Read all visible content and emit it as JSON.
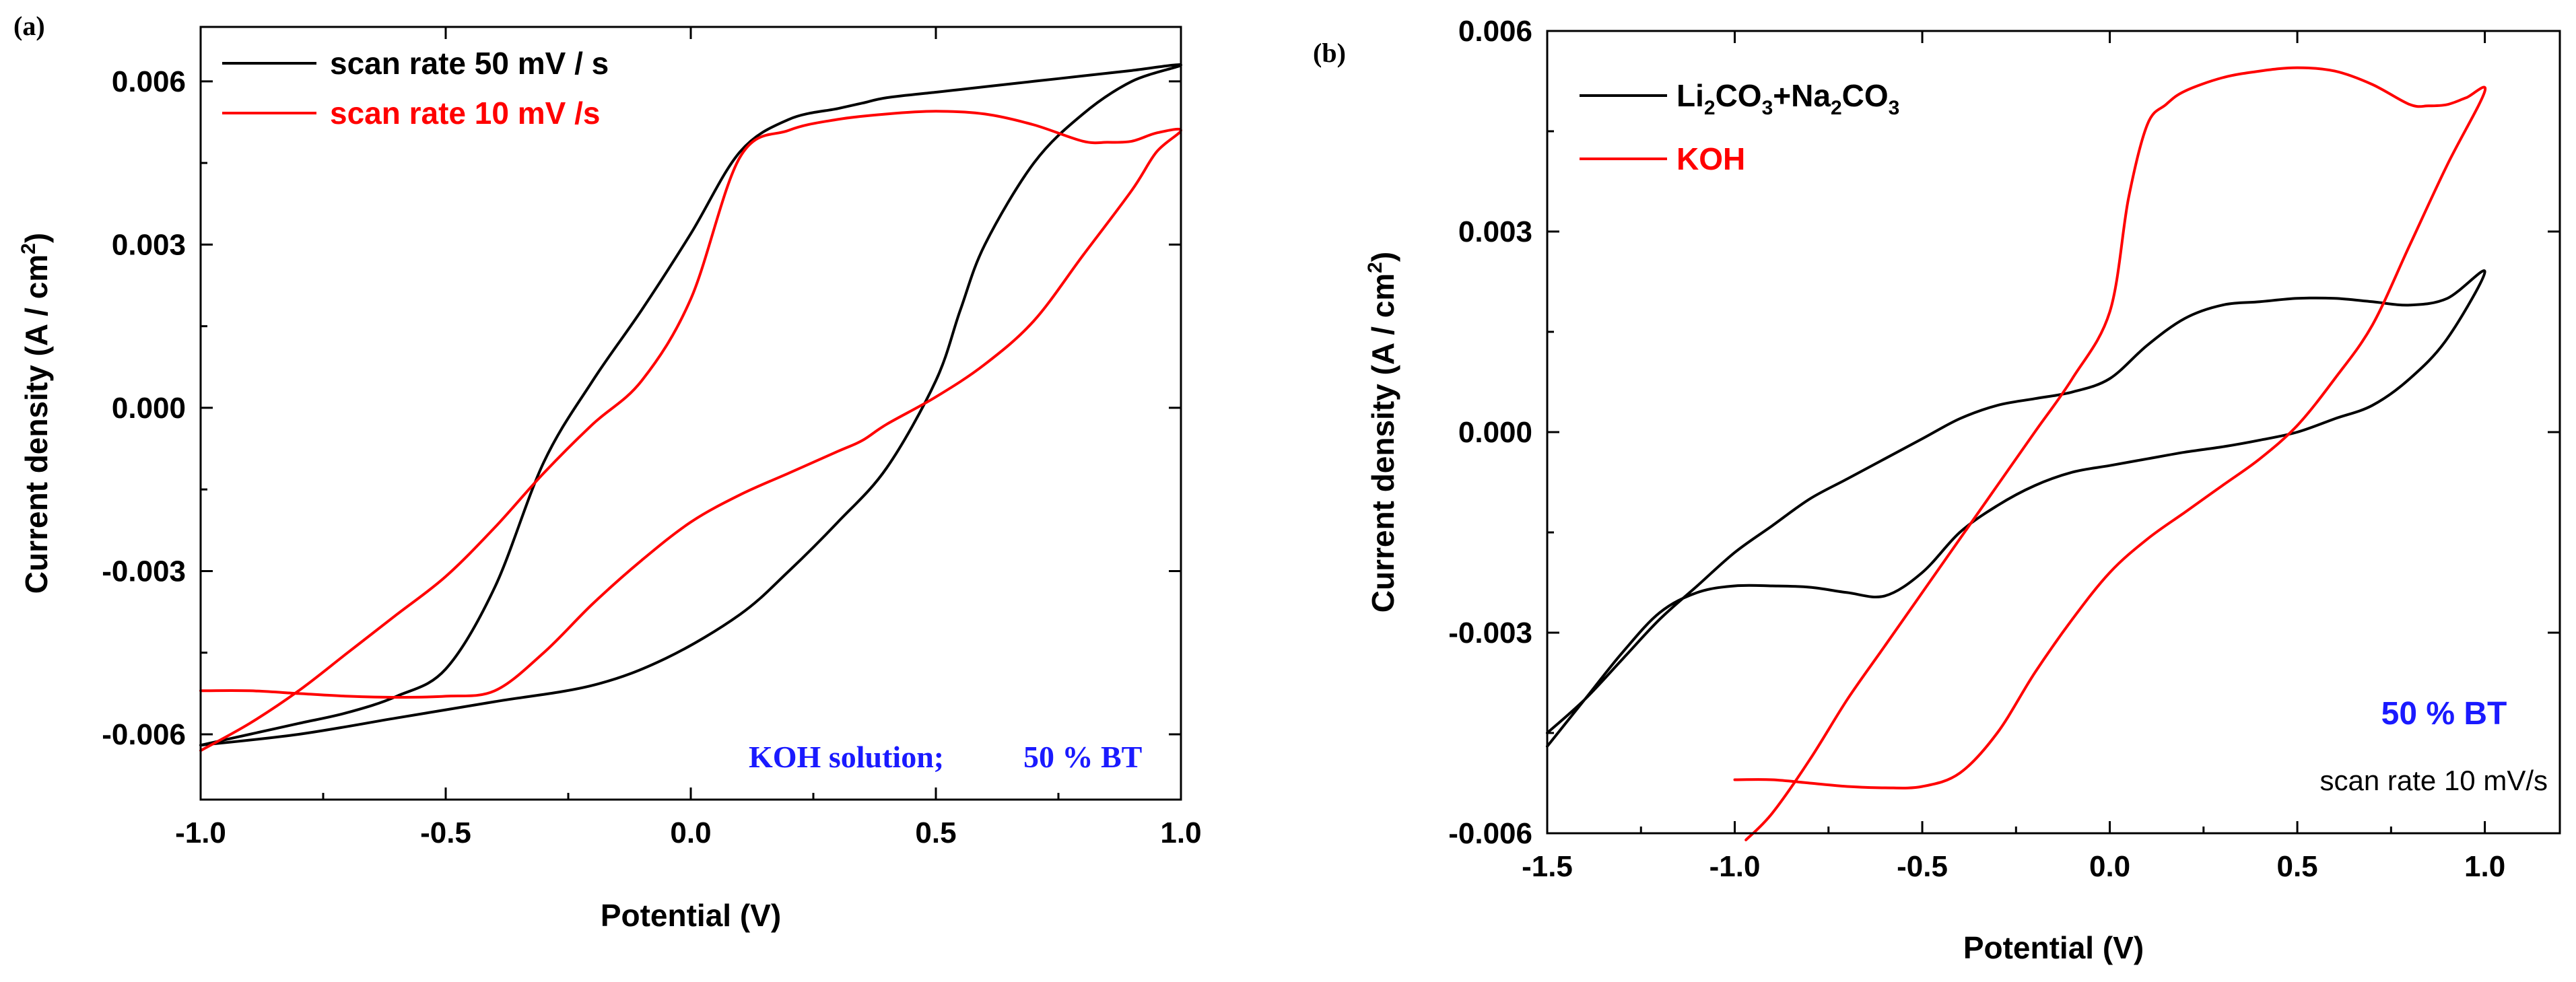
{
  "chart_data": [
    {
      "type": "line",
      "panel_label": "(a)",
      "xlabel": "Potential (V)",
      "ylabel": "Current density (A / cm2)",
      "ylabel_parts": {
        "main": "Current density (A / cm",
        "sup": "2",
        "end": ")"
      },
      "xlim": [
        -1.0,
        1.0
      ],
      "ylim": [
        -0.0072,
        0.007
      ],
      "xticks": [
        "-1.0",
        "-0.5",
        "0.0",
        "0.5",
        "1.0"
      ],
      "yticks": [
        "0.006",
        "0.003",
        "0.000",
        "-0.003",
        "-0.006"
      ],
      "ytick_values": [
        0.006,
        0.003,
        0.0,
        -0.003,
        -0.006
      ],
      "xtick_values": [
        -1.0,
        -0.5,
        0.0,
        0.5,
        1.0
      ],
      "legend_position": "top-left",
      "annotation": {
        "left": "KOH solution;",
        "right": "50 % BT"
      },
      "series": [
        {
          "name": "scan rate 50 mV / s",
          "color": "#000000",
          "x": [
            -1.0,
            -0.8,
            -0.6,
            -0.4,
            -0.2,
            -0.05,
            0.1,
            0.2,
            0.3,
            0.4,
            0.5,
            0.55,
            0.6,
            0.7,
            0.8,
            0.9,
            1.0,
            0.9,
            0.8,
            0.7,
            0.6,
            0.55,
            0.5,
            0.4,
            0.35,
            0.3,
            0.2,
            0.1,
            0.0,
            -0.1,
            -0.2,
            -0.3,
            -0.4,
            -0.5,
            -0.6,
            -0.7,
            -0.8,
            -0.9,
            -1.0
          ],
          "y": [
            -0.0062,
            -0.006,
            -0.0057,
            -0.0054,
            -0.0051,
            -0.0046,
            -0.0038,
            -0.003,
            -0.0021,
            -0.0011,
            0.0005,
            0.0018,
            0.003,
            0.0045,
            0.0054,
            0.006,
            0.0063,
            0.0062,
            0.0061,
            0.006,
            0.0059,
            0.00585,
            0.0058,
            0.0057,
            0.0056,
            0.0055,
            0.0053,
            0.0047,
            0.0032,
            0.0018,
            0.0005,
            -0.001,
            -0.0033,
            -0.0048,
            -0.0053,
            -0.0056,
            -0.0058,
            -0.006,
            -0.0062
          ]
        },
        {
          "name": "scan rate 10 mV /s",
          "color": "#ff0000",
          "x": [
            -1.0,
            -0.9,
            -0.8,
            -0.7,
            -0.6,
            -0.5,
            -0.4,
            -0.3,
            -0.2,
            -0.1,
            0.0,
            0.1,
            0.2,
            0.3,
            0.35,
            0.4,
            0.5,
            0.6,
            0.7,
            0.8,
            0.9,
            0.95,
            1.0,
            0.95,
            0.9,
            0.85,
            0.8,
            0.7,
            0.6,
            0.5,
            0.4,
            0.3,
            0.2,
            0.1,
            0.0,
            -0.1,
            -0.2,
            -0.3,
            -0.4,
            -0.5,
            -0.6,
            -0.7,
            -0.8,
            -0.9,
            -1.0
          ],
          "y": [
            -0.0052,
            -0.0052,
            -0.00525,
            -0.0053,
            -0.00532,
            -0.0053,
            -0.0052,
            -0.0045,
            -0.0036,
            -0.0028,
            -0.0021,
            -0.0016,
            -0.0012,
            -0.0008,
            -0.0006,
            -0.0003,
            0.0002,
            0.0008,
            0.0016,
            0.0028,
            0.004,
            0.0047,
            0.0051,
            0.00505,
            0.0049,
            0.00488,
            0.0049,
            0.0052,
            0.0054,
            0.00545,
            0.0054,
            0.0053,
            0.0051,
            0.0046,
            0.002,
            0.0005,
            -0.0003,
            -0.0012,
            -0.0022,
            -0.0031,
            -0.0038,
            -0.0045,
            -0.0052,
            -0.0058,
            -0.0063
          ]
        }
      ]
    },
    {
      "type": "line",
      "panel_label": "(b)",
      "xlabel": "Potential (V)",
      "ylabel": "Current density (A / cm2)",
      "ylabel_parts": {
        "main": "Current density (A / cm",
        "sup": "2",
        "end": ")"
      },
      "xlim": [
        -1.5,
        1.2
      ],
      "ylim": [
        -0.006,
        0.006
      ],
      "xticks": [
        "-1.5",
        "-1.0",
        "-0.5",
        "0.0",
        "0.5",
        "1.0"
      ],
      "xtick_values": [
        -1.5,
        -1.0,
        -0.5,
        0.0,
        0.5,
        1.0
      ],
      "yticks": [
        "0.006",
        "0.003",
        "0.000",
        "-0.003",
        "-0.006"
      ],
      "ytick_values": [
        0.006,
        0.003,
        0.0,
        -0.003,
        -0.006
      ],
      "legend_position": "top-left",
      "annotation": {
        "line1": "50 % BT",
        "line2": "scan rate 10 mV/s"
      },
      "series": [
        {
          "name": "Li2CO3+Na2CO3",
          "name_parts": [
            {
              "t": "Li",
              "s": ""
            },
            {
              "t": "2",
              "s": "sub"
            },
            {
              "t": "CO",
              "s": ""
            },
            {
              "t": "3",
              "s": "sub"
            },
            {
              "t": "+Na",
              "s": ""
            },
            {
              "t": "2",
              "s": "sub"
            },
            {
              "t": "CO",
              "s": ""
            },
            {
              "t": "3",
              "s": "sub"
            }
          ],
          "color": "#000000",
          "x": [
            -1.5,
            -1.4,
            -1.3,
            -1.2,
            -1.1,
            -1.0,
            -0.9,
            -0.8,
            -0.7,
            -0.6,
            -0.5,
            -0.4,
            -0.3,
            -0.2,
            -0.1,
            0.0,
            0.1,
            0.2,
            0.3,
            0.4,
            0.5,
            0.6,
            0.7,
            0.8,
            0.9,
            1.0,
            0.9,
            0.8,
            0.7,
            0.6,
            0.5,
            0.4,
            0.3,
            0.2,
            0.1,
            0.0,
            -0.1,
            -0.2,
            -0.3,
            -0.4,
            -0.5,
            -0.6,
            -0.7,
            -0.8,
            -0.9,
            -1.0,
            -1.1,
            -1.2,
            -1.3,
            -1.4,
            -1.5
          ],
          "y": [
            -0.0047,
            -0.004,
            -0.0033,
            -0.0027,
            -0.0024,
            -0.0023,
            -0.0023,
            -0.00232,
            -0.0024,
            -0.00245,
            -0.0021,
            -0.0015,
            -0.0011,
            -0.0008,
            -0.0006,
            -0.0005,
            -0.0004,
            -0.0003,
            -0.00022,
            -0.00012,
            0.0,
            0.0002,
            0.0004,
            0.0008,
            0.0014,
            0.0024,
            0.002,
            0.0019,
            0.00195,
            0.002,
            0.002,
            0.00195,
            0.0019,
            0.0017,
            0.0013,
            0.0008,
            0.0006,
            0.0005,
            0.0004,
            0.0002,
            -0.0001,
            -0.0004,
            -0.0007,
            -0.001,
            -0.0014,
            -0.0018,
            -0.0023,
            -0.0028,
            -0.0034,
            -0.004,
            -0.0045
          ]
        },
        {
          "name": "KOH",
          "color": "#ff0000",
          "x": [
            -1.0,
            -0.9,
            -0.8,
            -0.7,
            -0.6,
            -0.5,
            -0.4,
            -0.3,
            -0.2,
            -0.1,
            0.0,
            0.1,
            0.2,
            0.3,
            0.4,
            0.5,
            0.6,
            0.7,
            0.8,
            0.9,
            1.0,
            0.95,
            0.9,
            0.85,
            0.8,
            0.7,
            0.6,
            0.5,
            0.4,
            0.3,
            0.2,
            0.15,
            0.1,
            0.05,
            0.0,
            -0.1,
            -0.2,
            -0.3,
            -0.4,
            -0.5,
            -0.6,
            -0.7,
            -0.8,
            -0.9,
            -0.97
          ],
          "y": [
            -0.0052,
            -0.0052,
            -0.00525,
            -0.0053,
            -0.00532,
            -0.0053,
            -0.0051,
            -0.0045,
            -0.0036,
            -0.0028,
            -0.0021,
            -0.0016,
            -0.0012,
            -0.0008,
            -0.0004,
            0.0001,
            0.0008,
            0.0016,
            0.0028,
            0.004,
            0.0051,
            0.005,
            0.0049,
            0.00488,
            0.0049,
            0.0052,
            0.0054,
            0.00545,
            0.0054,
            0.0053,
            0.0051,
            0.0049,
            0.0046,
            0.0035,
            0.0018,
            0.0008,
            0.0,
            -0.0008,
            -0.0016,
            -0.0024,
            -0.0032,
            -0.004,
            -0.0049,
            -0.0057,
            -0.0061
          ]
        }
      ]
    }
  ]
}
